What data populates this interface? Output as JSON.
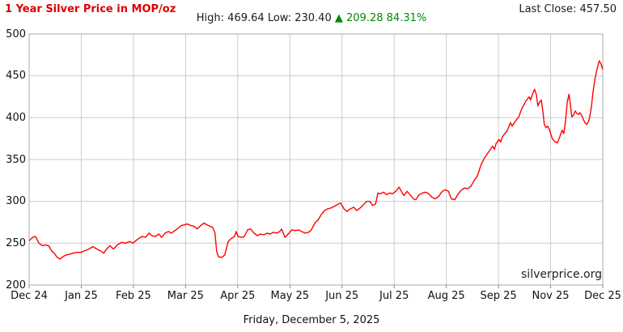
{
  "header": {
    "title": "1 Year Silver Price in MOP/oz",
    "high_label": "High:",
    "high_value": "469.64",
    "low_label": "Low:",
    "low_value": "230.40",
    "change_arrow": "▲",
    "change_value": "209.28",
    "change_percent": "84.31%",
    "last_close_label": "Last Close:",
    "last_close_value": "457.50"
  },
  "footer": {
    "watermark": "silverprice.org",
    "date": "Friday, December 5, 2025"
  },
  "colors": {
    "title_red": "#dd0000",
    "line_red": "#ff0000",
    "change_green": "#008a00",
    "grid": "#cccccc",
    "border": "#aaaaaa",
    "tick": "#888888"
  },
  "chart_data": {
    "type": "line",
    "title": "1 Year Silver Price in MOP/oz",
    "unit": "MOP/oz",
    "high": 469.64,
    "low": 230.4,
    "change": 209.28,
    "change_pct": "84.31%",
    "last_close": 457.5,
    "ylim": [
      200,
      500
    ],
    "y_ticks": [
      500,
      450,
      400,
      350,
      300,
      250,
      200
    ],
    "x_labels": [
      "Dec 24",
      "Jan 25",
      "Feb 25",
      "Mar 25",
      "Apr 25",
      "May 25",
      "Jun 25",
      "Jul 25",
      "Aug 25",
      "Sep 25",
      "Nov 25",
      "Dec 25"
    ],
    "grid": true,
    "legend": false,
    "points": [
      [
        0.0,
        253
      ],
      [
        0.006,
        257
      ],
      [
        0.011,
        258
      ],
      [
        0.017,
        250
      ],
      [
        0.023,
        247
      ],
      [
        0.028,
        248
      ],
      [
        0.034,
        247
      ],
      [
        0.039,
        241
      ],
      [
        0.045,
        237
      ],
      [
        0.049,
        233
      ],
      [
        0.054,
        231
      ],
      [
        0.059,
        234
      ],
      [
        0.065,
        236
      ],
      [
        0.071,
        237
      ],
      [
        0.076,
        238
      ],
      [
        0.083,
        239
      ],
      [
        0.09,
        239
      ],
      [
        0.097,
        241
      ],
      [
        0.104,
        243
      ],
      [
        0.111,
        246
      ],
      [
        0.118,
        243
      ],
      [
        0.124,
        241
      ],
      [
        0.13,
        238
      ],
      [
        0.135,
        243
      ],
      [
        0.141,
        247
      ],
      [
        0.147,
        243
      ],
      [
        0.154,
        248
      ],
      [
        0.161,
        251
      ],
      [
        0.168,
        250
      ],
      [
        0.175,
        252
      ],
      [
        0.181,
        250
      ],
      [
        0.186,
        253
      ],
      [
        0.192,
        256
      ],
      [
        0.197,
        258
      ],
      [
        0.203,
        257
      ],
      [
        0.209,
        262
      ],
      [
        0.214,
        259
      ],
      [
        0.22,
        258
      ],
      [
        0.226,
        261
      ],
      [
        0.231,
        257
      ],
      [
        0.237,
        262
      ],
      [
        0.243,
        264
      ],
      [
        0.248,
        262
      ],
      [
        0.254,
        265
      ],
      [
        0.26,
        268
      ],
      [
        0.265,
        271
      ],
      [
        0.271,
        272
      ],
      [
        0.276,
        273
      ],
      [
        0.282,
        271
      ],
      [
        0.288,
        270
      ],
      [
        0.293,
        267
      ],
      [
        0.299,
        271
      ],
      [
        0.305,
        274
      ],
      [
        0.31,
        272
      ],
      [
        0.316,
        270
      ],
      [
        0.32,
        269
      ],
      [
        0.324,
        262
      ],
      [
        0.327,
        240
      ],
      [
        0.33,
        234
      ],
      [
        0.336,
        233
      ],
      [
        0.341,
        236
      ],
      [
        0.347,
        252
      ],
      [
        0.353,
        256
      ],
      [
        0.358,
        258
      ],
      [
        0.361,
        264
      ],
      [
        0.364,
        258
      ],
      [
        0.37,
        257
      ],
      [
        0.375,
        258
      ],
      [
        0.381,
        266
      ],
      [
        0.386,
        267
      ],
      [
        0.392,
        262
      ],
      [
        0.398,
        259
      ],
      [
        0.403,
        261
      ],
      [
        0.409,
        260
      ],
      [
        0.415,
        262
      ],
      [
        0.42,
        261
      ],
      [
        0.426,
        263
      ],
      [
        0.432,
        262
      ],
      [
        0.437,
        264
      ],
      [
        0.44,
        267
      ],
      [
        0.446,
        257
      ],
      [
        0.453,
        262
      ],
      [
        0.458,
        266
      ],
      [
        0.464,
        265
      ],
      [
        0.47,
        266
      ],
      [
        0.475,
        264
      ],
      [
        0.481,
        262
      ],
      [
        0.487,
        263
      ],
      [
        0.492,
        266
      ],
      [
        0.498,
        274
      ],
      [
        0.504,
        278
      ],
      [
        0.509,
        284
      ],
      [
        0.515,
        289
      ],
      [
        0.52,
        291
      ],
      [
        0.526,
        292
      ],
      [
        0.532,
        294
      ],
      [
        0.537,
        296
      ],
      [
        0.543,
        298
      ],
      [
        0.549,
        291
      ],
      [
        0.554,
        288
      ],
      [
        0.56,
        291
      ],
      [
        0.566,
        293
      ],
      [
        0.571,
        289
      ],
      [
        0.577,
        292
      ],
      [
        0.583,
        296
      ],
      [
        0.588,
        300
      ],
      [
        0.594,
        300
      ],
      [
        0.599,
        295
      ],
      [
        0.604,
        297
      ],
      [
        0.608,
        310
      ],
      [
        0.612,
        309
      ],
      [
        0.618,
        311
      ],
      [
        0.623,
        308
      ],
      [
        0.629,
        310
      ],
      [
        0.633,
        309
      ],
      [
        0.639,
        312
      ],
      [
        0.645,
        317
      ],
      [
        0.649,
        312
      ],
      [
        0.653,
        307
      ],
      [
        0.659,
        312
      ],
      [
        0.664,
        308
      ],
      [
        0.67,
        303
      ],
      [
        0.674,
        302
      ],
      [
        0.68,
        308
      ],
      [
        0.686,
        310
      ],
      [
        0.691,
        311
      ],
      [
        0.697,
        309
      ],
      [
        0.702,
        305
      ],
      [
        0.708,
        303
      ],
      [
        0.714,
        306
      ],
      [
        0.719,
        311
      ],
      [
        0.725,
        314
      ],
      [
        0.731,
        312
      ],
      [
        0.736,
        303
      ],
      [
        0.742,
        302
      ],
      [
        0.748,
        309
      ],
      [
        0.753,
        313
      ],
      [
        0.759,
        316
      ],
      [
        0.764,
        315
      ],
      [
        0.77,
        318
      ],
      [
        0.776,
        325
      ],
      [
        0.781,
        330
      ],
      [
        0.784,
        336
      ],
      [
        0.788,
        344
      ],
      [
        0.794,
        352
      ],
      [
        0.8,
        358
      ],
      [
        0.805,
        363
      ],
      [
        0.808,
        366
      ],
      [
        0.811,
        362
      ],
      [
        0.814,
        369
      ],
      [
        0.817,
        372
      ],
      [
        0.819,
        374
      ],
      [
        0.822,
        371
      ],
      [
        0.825,
        377
      ],
      [
        0.828,
        380
      ],
      [
        0.833,
        384
      ],
      [
        0.836,
        389
      ],
      [
        0.839,
        394
      ],
      [
        0.842,
        390
      ],
      [
        0.848,
        396
      ],
      [
        0.85,
        398
      ],
      [
        0.853,
        400
      ],
      [
        0.859,
        411
      ],
      [
        0.866,
        420
      ],
      [
        0.872,
        425
      ],
      [
        0.874,
        421
      ],
      [
        0.877,
        427
      ],
      [
        0.881,
        434
      ],
      [
        0.884,
        428
      ],
      [
        0.887,
        414
      ],
      [
        0.89,
        419
      ],
      [
        0.893,
        421
      ],
      [
        0.896,
        405
      ],
      [
        0.898,
        392
      ],
      [
        0.901,
        388
      ],
      [
        0.904,
        390
      ],
      [
        0.907,
        386
      ],
      [
        0.91,
        379
      ],
      [
        0.912,
        375
      ],
      [
        0.917,
        371
      ],
      [
        0.921,
        370
      ],
      [
        0.925,
        377
      ],
      [
        0.929,
        385
      ],
      [
        0.932,
        381
      ],
      [
        0.935,
        395
      ],
      [
        0.938,
        418
      ],
      [
        0.941,
        428
      ],
      [
        0.944,
        413
      ],
      [
        0.946,
        401
      ],
      [
        0.949,
        403
      ],
      [
        0.952,
        408
      ],
      [
        0.955,
        405
      ],
      [
        0.958,
        404
      ],
      [
        0.96,
        406
      ],
      [
        0.963,
        403
      ],
      [
        0.966,
        398
      ],
      [
        0.969,
        394
      ],
      [
        0.972,
        392
      ],
      [
        0.975,
        395
      ],
      [
        0.977,
        400
      ],
      [
        0.98,
        412
      ],
      [
        0.983,
        430
      ],
      [
        0.986,
        445
      ],
      [
        0.989,
        455
      ],
      [
        0.992,
        463
      ],
      [
        0.994,
        468
      ],
      [
        0.997,
        464
      ],
      [
        1.0,
        457.5
      ]
    ]
  }
}
